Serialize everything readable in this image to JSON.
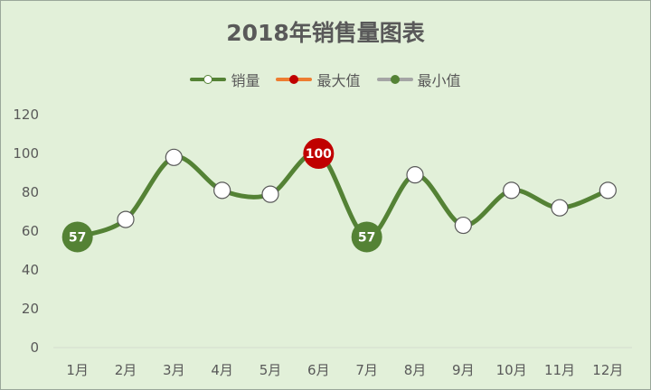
{
  "chart_data": {
    "type": "line",
    "title": "2018年销售量图表",
    "categories": [
      "1月",
      "2月",
      "3月",
      "4月",
      "5月",
      "6月",
      "7月",
      "8月",
      "9月",
      "10月",
      "11月",
      "12月"
    ],
    "series": [
      {
        "name": "销量",
        "values": [
          57,
          66,
          98,
          81,
          79,
          100,
          57,
          89,
          63,
          81,
          72,
          81
        ],
        "color": "#548235"
      },
      {
        "name": "最大值",
        "values": [
          null,
          null,
          null,
          null,
          null,
          100,
          null,
          null,
          null,
          null,
          null,
          null
        ],
        "color": "#c00000",
        "legend_color": "#ed7d31"
      },
      {
        "name": "最小值",
        "values": [
          57,
          null,
          null,
          null,
          null,
          null,
          57,
          null,
          null,
          null,
          null,
          null
        ],
        "color": "#548235",
        "legend_color": "#a5a5a5"
      }
    ],
    "y_ticks": [
      "0",
      "20",
      "40",
      "60",
      "80",
      "100",
      "120"
    ],
    "ylim": [
      0,
      120
    ],
    "grid": false,
    "legend_position": "top",
    "smooth": true
  }
}
